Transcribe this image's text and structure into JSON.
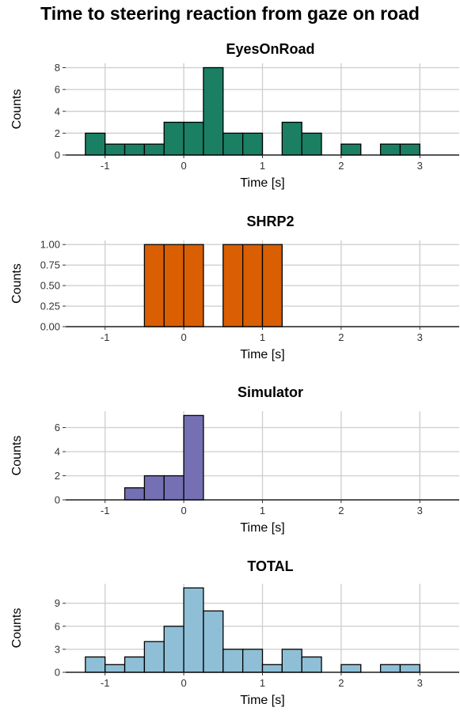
{
  "title": "Time to steering reaction from gaze on road",
  "chart_data": [
    {
      "type": "bar",
      "title": "EyesOnRoad",
      "xlabel": "Time [s]",
      "ylabel": "Counts",
      "color": "#1b7f64",
      "bin_width": 0.25,
      "xlim": [
        -1.5,
        3.5
      ],
      "ylim": [
        0,
        8.4
      ],
      "xticks": [
        "-1",
        "0",
        "1",
        "2",
        "3"
      ],
      "yticks": [
        "0",
        "2",
        "4",
        "6",
        "8"
      ],
      "bins_left": [
        -1.25,
        -1.0,
        -0.75,
        -0.5,
        -0.25,
        0.0,
        0.25,
        0.5,
        0.75,
        1.0,
        1.25,
        1.5,
        1.75,
        2.0,
        2.25,
        2.5,
        2.75,
        3.0,
        3.25
      ],
      "values": [
        2,
        1,
        1,
        1,
        3,
        3,
        8,
        2,
        2,
        0,
        3,
        2,
        0,
        1,
        0,
        1,
        1,
        0,
        0
      ],
      "grid": true
    },
    {
      "type": "bar",
      "title": "SHRP2",
      "xlabel": "Time [s]",
      "ylabel": "Counts",
      "color": "#d95f02",
      "bin_width": 0.25,
      "xlim": [
        -1.5,
        3.5
      ],
      "ylim": [
        0,
        1.05
      ],
      "xticks": [
        "-1",
        "0",
        "1",
        "2",
        "3"
      ],
      "yticks": [
        "0.00",
        "0.25",
        "0.50",
        "0.75",
        "1.00"
      ],
      "bins_left": [
        -1.25,
        -1.0,
        -0.75,
        -0.5,
        -0.25,
        0.0,
        0.25,
        0.5,
        0.75,
        1.0,
        1.25,
        1.5,
        1.75,
        2.0,
        2.25,
        2.5,
        2.75,
        3.0,
        3.25
      ],
      "values": [
        0,
        0,
        0,
        1,
        1,
        1,
        0,
        1,
        1,
        1,
        0,
        0,
        0,
        0,
        0,
        0,
        0,
        0,
        0
      ],
      "grid": true
    },
    {
      "type": "bar",
      "title": "Simulator",
      "xlabel": "Time [s]",
      "ylabel": "Counts",
      "color": "#7570b3",
      "bin_width": 0.25,
      "xlim": [
        -1.5,
        3.5
      ],
      "ylim": [
        0,
        7.35
      ],
      "xticks": [
        "-1",
        "0",
        "1",
        "2",
        "3"
      ],
      "yticks": [
        "0",
        "2",
        "4",
        "6"
      ],
      "bins_left": [
        -1.25,
        -1.0,
        -0.75,
        -0.5,
        -0.25,
        0.0,
        0.25,
        0.5,
        0.75,
        1.0,
        1.25,
        1.5,
        1.75,
        2.0,
        2.25,
        2.5,
        2.75,
        3.0,
        3.25
      ],
      "values": [
        0,
        0,
        1,
        2,
        2,
        7,
        0,
        0,
        0,
        0,
        0,
        0,
        0,
        0,
        0,
        0,
        0,
        0,
        0
      ],
      "grid": true
    },
    {
      "type": "bar",
      "title": "TOTAL",
      "xlabel": "Time [s]",
      "ylabel": "Counts",
      "color": "#8fbfd6",
      "bin_width": 0.25,
      "xlim": [
        -1.5,
        3.5
      ],
      "ylim": [
        0,
        11.55
      ],
      "xticks": [
        "-1",
        "0",
        "1",
        "2",
        "3"
      ],
      "yticks": [
        "0",
        "3",
        "6",
        "9"
      ],
      "bins_left": [
        -1.25,
        -1.0,
        -0.75,
        -0.5,
        -0.25,
        0.0,
        0.25,
        0.5,
        0.75,
        1.0,
        1.25,
        1.5,
        1.75,
        2.0,
        2.25,
        2.5,
        2.75,
        3.0,
        3.25
      ],
      "values": [
        2,
        1,
        2,
        4,
        6,
        11,
        8,
        3,
        3,
        1,
        3,
        2,
        0,
        1,
        0,
        1,
        1,
        0,
        0
      ],
      "grid": true
    }
  ]
}
